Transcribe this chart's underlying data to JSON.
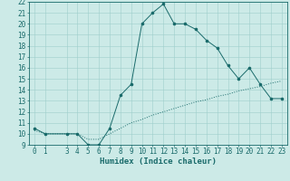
{
  "xlabel": "Humidex (Indice chaleur)",
  "background_color": "#cceae7",
  "grid_color": "#9ecfcc",
  "line_color": "#1a6b6b",
  "xlim": [
    -0.5,
    23.5
  ],
  "ylim": [
    9,
    22
  ],
  "xticks": [
    0,
    1,
    3,
    4,
    5,
    6,
    7,
    8,
    9,
    10,
    11,
    12,
    13,
    14,
    15,
    16,
    17,
    18,
    19,
    20,
    21,
    22,
    23
  ],
  "yticks": [
    9,
    10,
    11,
    12,
    13,
    14,
    15,
    16,
    17,
    18,
    19,
    20,
    21,
    22
  ],
  "line1_x": [
    0,
    1,
    3,
    4,
    5,
    6,
    7,
    8,
    9,
    10,
    11,
    12,
    13,
    14,
    15,
    16,
    17,
    18,
    19,
    20,
    21,
    22,
    23
  ],
  "line1_y": [
    10.5,
    10.0,
    10.0,
    10.0,
    9.0,
    9.0,
    10.5,
    13.5,
    14.5,
    20.0,
    21.0,
    21.8,
    20.0,
    20.0,
    19.5,
    18.5,
    17.8,
    16.2,
    15.0,
    16.0,
    14.5,
    13.2,
    13.2
  ],
  "line2_x": [
    0,
    1,
    3,
    4,
    5,
    6,
    7,
    8,
    9,
    10,
    11,
    12,
    13,
    14,
    15,
    16,
    17,
    18,
    19,
    20,
    21,
    22,
    23
  ],
  "line2_y": [
    10.3,
    10.0,
    10.0,
    10.0,
    9.5,
    9.5,
    10.0,
    10.5,
    11.0,
    11.3,
    11.7,
    12.0,
    12.3,
    12.6,
    12.9,
    13.1,
    13.4,
    13.6,
    13.9,
    14.1,
    14.3,
    14.6,
    14.8
  ],
  "tick_fontsize": 5.5,
  "label_fontsize": 6.5
}
